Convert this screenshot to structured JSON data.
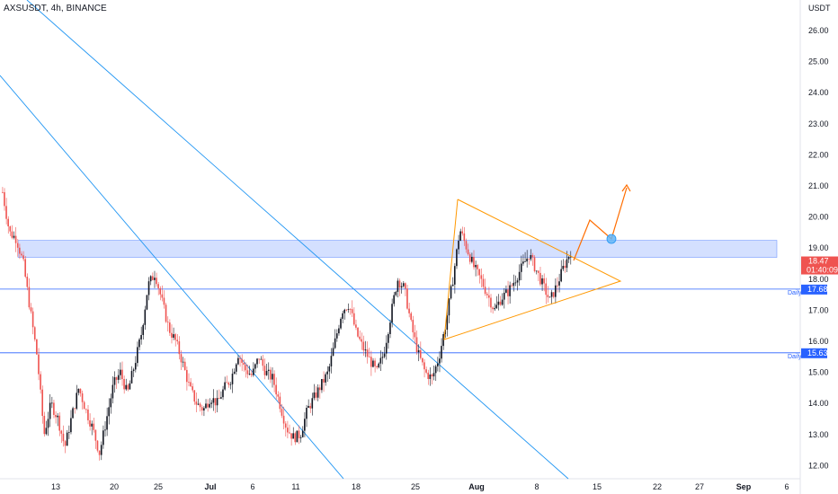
{
  "header": {
    "symbol_line": "AXSUSDT, 4h, BINANCE"
  },
  "price_axis": {
    "unit_label": "USDT",
    "ticks": [
      "26.00",
      "25.00",
      "24.00",
      "23.00",
      "22.00",
      "21.00",
      "20.00",
      "19.00",
      "18.00",
      "17.00",
      "16.00",
      "15.00",
      "14.00",
      "13.00",
      "12.00"
    ]
  },
  "time_axis": {
    "labels": [
      "13",
      "20",
      "25",
      "Jul",
      "6",
      "11",
      "18",
      "25",
      "Aug",
      "8",
      "15",
      "22",
      "27",
      "Sep",
      "6"
    ]
  },
  "price_tags": {
    "current": {
      "price": "18.47",
      "countdown": "01:40:09",
      "color": "#ef5350"
    },
    "level_upper": {
      "price": "17.68",
      "label": "Daily",
      "color": "#2962ff"
    },
    "level_lower": {
      "price": "15.63",
      "label": "Daily",
      "color": "#2962ff"
    }
  },
  "chart_data": {
    "type": "candlestick",
    "symbol": "AXSUSDT",
    "interval": "4h",
    "exchange": "BINANCE",
    "y_range": [
      11.7,
      26.6
    ],
    "y_ticks": [
      12,
      13,
      14,
      15,
      16,
      17,
      18,
      19,
      20,
      21,
      22,
      23,
      24,
      25,
      26
    ],
    "x_tick_labels": [
      "13",
      "20",
      "25",
      "Jul",
      "6",
      "11",
      "18",
      "25",
      "Aug",
      "8",
      "15",
      "22",
      "27",
      "Sep",
      "6"
    ],
    "colors": {
      "up": "#26a69a",
      "down": "#ef5350",
      "candle_body_dark": "#131722"
    },
    "price_path": [
      20.8,
      19.5,
      19.3,
      18.5,
      17.0,
      15.5,
      13.0,
      14.0,
      13.5,
      12.6,
      13.6,
      14.5,
      13.8,
      13.2,
      12.4,
      13.5,
      14.6,
      15.0,
      14.3,
      15.2,
      16.2,
      17.8,
      18.2,
      17.3,
      16.4,
      16.0,
      15.3,
      14.5,
      14.0,
      13.8,
      14.2,
      14.0,
      14.5,
      14.8,
      15.6,
      15.1,
      14.9,
      15.5,
      15.0,
      14.8,
      14.0,
      13.2,
      12.9,
      13.0,
      13.8,
      14.2,
      14.6,
      15.0,
      16.0,
      17.0,
      17.2,
      16.3,
      15.8,
      15.4,
      15.0,
      15.6,
      16.8,
      18.0,
      17.7,
      16.5,
      15.6,
      15.0,
      14.8,
      15.5,
      16.6,
      18.0,
      19.6,
      19.0,
      18.4,
      18.0,
      17.5,
      17.0,
      17.4,
      17.6,
      18.0,
      18.4,
      18.8,
      18.3,
      17.8,
      17.3,
      17.8,
      18.4,
      18.9
    ],
    "support_resistance_zone": [
      18.7,
      19.25
    ],
    "horizontal_levels": [
      {
        "price": 17.68,
        "label": "Daily"
      },
      {
        "price": 15.63,
        "label": "Daily"
      }
    ],
    "current_price": 18.47,
    "countdown": "01:40:09",
    "drawings": {
      "descending_trendlines": 2,
      "symmetrical_triangle": true,
      "projected_path_to": 21.0
    }
  }
}
